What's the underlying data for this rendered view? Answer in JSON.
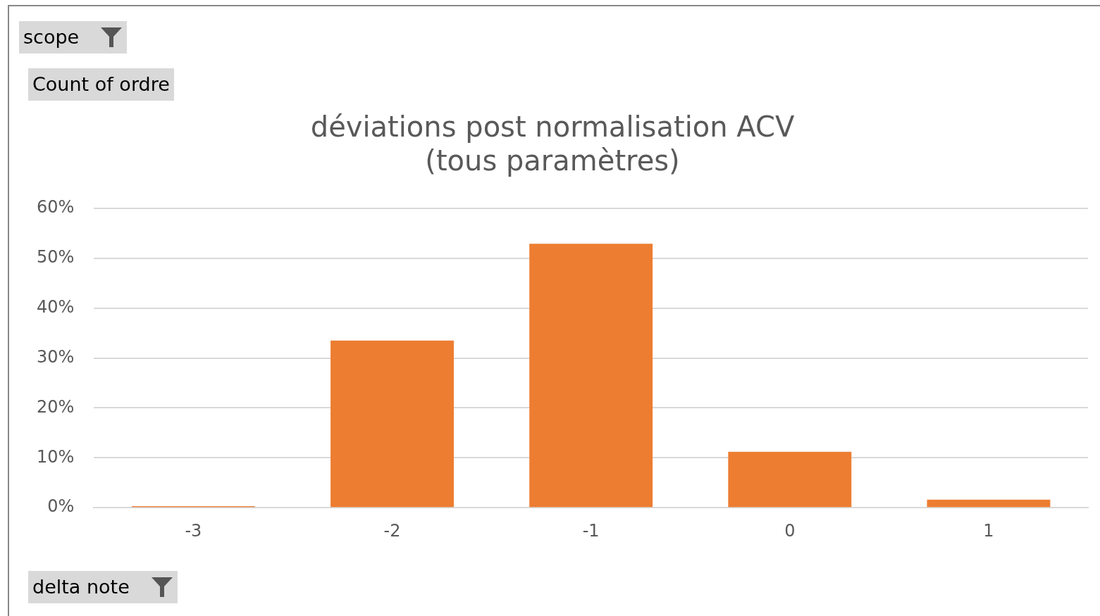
{
  "chart_data": {
    "type": "bar",
    "title": [
      "déviations post normalisation ACV",
      "(tous paramètres)"
    ],
    "categories": [
      "-3",
      "-2",
      "-1",
      "0",
      "1"
    ],
    "values": [
      0.3,
      33.5,
      52.9,
      11.2,
      1.6
    ],
    "color": "#ed7d31",
    "ylim": [
      0,
      60
    ],
    "yticks": [
      {
        "value": 0,
        "label": "0%"
      },
      {
        "value": 10,
        "label": "10%"
      },
      {
        "value": 20,
        "label": "20%"
      },
      {
        "value": 30,
        "label": "30%"
      },
      {
        "value": 40,
        "label": "40%"
      },
      {
        "value": 50,
        "label": "50%"
      },
      {
        "value": 60,
        "label": "60%"
      }
    ],
    "grid": "y",
    "annotations": [
      "scope",
      "Count of ordre",
      "delta note"
    ]
  }
}
